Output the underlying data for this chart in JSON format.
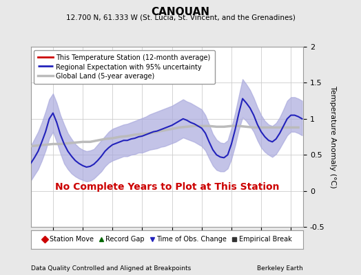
{
  "title": "CANOUAN",
  "subtitle": "12.700 N, 61.333 W (St. Lucia, St. Vincent, and the Grenadines)",
  "ylabel": "Temperature Anomaly (°C)",
  "footer_left": "Data Quality Controlled and Aligned at Breakpoints",
  "footer_right": "Berkeley Earth",
  "xlim": [
    1996.5,
    2014.83
  ],
  "ylim": [
    -0.5,
    2.0
  ],
  "yticks": [
    0,
    0.5,
    1.0,
    1.5,
    2.0
  ],
  "ytick_labels": [
    "0",
    "0.5",
    "1",
    "1.5",
    "2"
  ],
  "ytick_minor": -0.5,
  "xticks": [
    1998,
    2000,
    2002,
    2004,
    2006,
    2008,
    2010,
    2012,
    2014
  ],
  "annotation": "No Complete Years to Plot at This Station",
  "annotation_color": "#cc0000",
  "bg_color": "#e8e8e8",
  "plot_bg_color": "#ffffff",
  "regional_line_color": "#2222bb",
  "regional_fill_color": "#aaaadd",
  "global_line_color": "#bbbbbb",
  "station_line_color": "#cc0000",
  "legend1_entries": [
    {
      "label": "This Temperature Station (12-month average)",
      "color": "#cc0000",
      "lw": 2
    },
    {
      "label": "Regional Expectation with 95% uncertainty",
      "color": "#2222bb",
      "fill": "#aaaadd",
      "lw": 2
    },
    {
      "label": "Global Land (5-year average)",
      "color": "#bbbbbb",
      "lw": 2
    }
  ],
  "legend2_entries": [
    {
      "label": "Station Move",
      "marker": "D",
      "color": "#cc0000"
    },
    {
      "label": "Record Gap",
      "marker": "^",
      "color": "#006600"
    },
    {
      "label": "Time of Obs. Change",
      "marker": "v",
      "color": "#2222bb"
    },
    {
      "label": "Empirical Break",
      "marker": "s",
      "color": "#333333"
    }
  ],
  "regional_x": [
    1996.5,
    1996.75,
    1997.0,
    1997.25,
    1997.5,
    1997.75,
    1998.0,
    1998.25,
    1998.5,
    1998.75,
    1999.0,
    1999.25,
    1999.5,
    1999.75,
    2000.0,
    2000.25,
    2000.5,
    2000.75,
    2001.0,
    2001.25,
    2001.5,
    2001.75,
    2002.0,
    2002.25,
    2002.5,
    2002.75,
    2003.0,
    2003.25,
    2003.5,
    2003.75,
    2004.0,
    2004.25,
    2004.5,
    2004.75,
    2005.0,
    2005.25,
    2005.5,
    2005.75,
    2006.0,
    2006.25,
    2006.5,
    2006.75,
    2007.0,
    2007.25,
    2007.5,
    2007.75,
    2008.0,
    2008.25,
    2008.5,
    2008.75,
    2009.0,
    2009.25,
    2009.5,
    2009.75,
    2010.0,
    2010.25,
    2010.5,
    2010.75,
    2011.0,
    2011.25,
    2011.5,
    2011.75,
    2012.0,
    2012.25,
    2012.5,
    2012.75,
    2013.0,
    2013.25,
    2013.5,
    2013.75,
    2014.0,
    2014.25,
    2014.5,
    2014.75
  ],
  "regional_y": [
    0.38,
    0.46,
    0.55,
    0.68,
    0.82,
    1.0,
    1.08,
    0.95,
    0.78,
    0.65,
    0.55,
    0.48,
    0.42,
    0.38,
    0.35,
    0.33,
    0.34,
    0.37,
    0.42,
    0.48,
    0.55,
    0.6,
    0.64,
    0.66,
    0.68,
    0.7,
    0.7,
    0.72,
    0.73,
    0.75,
    0.76,
    0.78,
    0.8,
    0.82,
    0.83,
    0.85,
    0.87,
    0.89,
    0.91,
    0.94,
    0.97,
    1.0,
    0.98,
    0.95,
    0.93,
    0.9,
    0.87,
    0.8,
    0.68,
    0.57,
    0.5,
    0.47,
    0.46,
    0.5,
    0.65,
    0.85,
    1.08,
    1.28,
    1.22,
    1.15,
    1.05,
    0.92,
    0.82,
    0.75,
    0.7,
    0.68,
    0.72,
    0.8,
    0.9,
    1.0,
    1.05,
    1.05,
    1.03,
    1.0
  ],
  "regional_upper": [
    0.62,
    0.72,
    0.82,
    0.95,
    1.1,
    1.27,
    1.35,
    1.22,
    1.05,
    0.92,
    0.8,
    0.72,
    0.65,
    0.6,
    0.57,
    0.55,
    0.56,
    0.58,
    0.64,
    0.7,
    0.76,
    0.82,
    0.86,
    0.88,
    0.9,
    0.92,
    0.93,
    0.95,
    0.97,
    0.99,
    1.01,
    1.03,
    1.06,
    1.08,
    1.1,
    1.12,
    1.14,
    1.16,
    1.18,
    1.21,
    1.24,
    1.27,
    1.24,
    1.22,
    1.19,
    1.16,
    1.13,
    1.05,
    0.92,
    0.79,
    0.71,
    0.67,
    0.66,
    0.7,
    0.87,
    1.08,
    1.32,
    1.55,
    1.48,
    1.4,
    1.29,
    1.16,
    1.05,
    0.97,
    0.92,
    0.9,
    0.94,
    1.02,
    1.13,
    1.25,
    1.3,
    1.3,
    1.28,
    1.25
  ],
  "regional_lower": [
    0.14,
    0.22,
    0.3,
    0.42,
    0.56,
    0.73,
    0.82,
    0.68,
    0.52,
    0.38,
    0.3,
    0.24,
    0.2,
    0.17,
    0.15,
    0.13,
    0.14,
    0.17,
    0.22,
    0.27,
    0.34,
    0.39,
    0.42,
    0.44,
    0.46,
    0.48,
    0.48,
    0.5,
    0.51,
    0.53,
    0.53,
    0.55,
    0.57,
    0.58,
    0.59,
    0.61,
    0.62,
    0.64,
    0.66,
    0.68,
    0.71,
    0.74,
    0.72,
    0.7,
    0.68,
    0.65,
    0.62,
    0.56,
    0.45,
    0.35,
    0.29,
    0.27,
    0.27,
    0.31,
    0.44,
    0.63,
    0.85,
    1.02,
    0.97,
    0.9,
    0.82,
    0.7,
    0.6,
    0.54,
    0.5,
    0.47,
    0.51,
    0.59,
    0.68,
    0.77,
    0.82,
    0.82,
    0.8,
    0.77
  ],
  "global_x": [
    1996.5,
    1997.0,
    1997.5,
    1998.0,
    1998.5,
    1999.0,
    1999.5,
    2000.0,
    2000.5,
    2001.0,
    2001.5,
    2002.0,
    2002.5,
    2003.0,
    2003.5,
    2004.0,
    2004.5,
    2005.0,
    2005.5,
    2006.0,
    2006.5,
    2007.0,
    2007.5,
    2008.0,
    2008.5,
    2009.0,
    2009.5,
    2010.0,
    2010.5,
    2011.0,
    2011.5,
    2012.0,
    2012.5,
    2013.0,
    2013.5,
    2014.0,
    2014.5
  ],
  "global_y": [
    0.62,
    0.63,
    0.64,
    0.65,
    0.65,
    0.66,
    0.67,
    0.68,
    0.68,
    0.7,
    0.72,
    0.73,
    0.75,
    0.76,
    0.78,
    0.79,
    0.8,
    0.82,
    0.84,
    0.86,
    0.88,
    0.89,
    0.9,
    0.9,
    0.9,
    0.89,
    0.89,
    0.9,
    0.9,
    0.89,
    0.88,
    0.88,
    0.88,
    0.88,
    0.88,
    0.88,
    0.88
  ]
}
